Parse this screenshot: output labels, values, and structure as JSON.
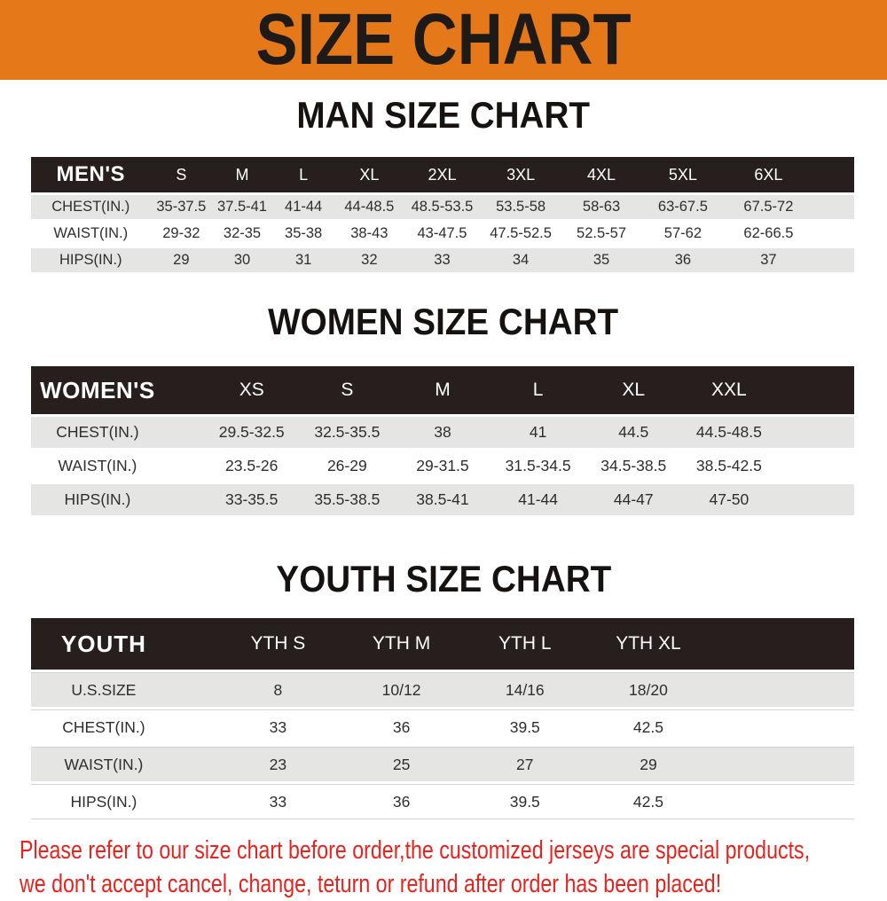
{
  "banner": {
    "title": "SIZE CHART"
  },
  "sections": [
    {
      "id": "men",
      "heading": "MAN SIZE CHART",
      "header_label": "MEN'S",
      "columns": [
        "S",
        "M",
        "L",
        "XL",
        "2XL",
        "3XL",
        "4XL",
        "5XL",
        "6XL"
      ],
      "rows": [
        {
          "label": "CHEST(IN.)",
          "values": [
            "35-37.5",
            "37.5-41",
            "41-44",
            "44-48.5",
            "48.5-53.5",
            "53.5-58",
            "58-63",
            "63-67.5",
            "67.5-72"
          ]
        },
        {
          "label": "WAIST(IN.)",
          "values": [
            "29-32",
            "32-35",
            "35-38",
            "38-43",
            "43-47.5",
            "47.5-52.5",
            "52.5-57",
            "57-62",
            "62-66.5"
          ]
        },
        {
          "label": "HIPS(IN.)",
          "values": [
            "29",
            "30",
            "31",
            "32",
            "33",
            "34",
            "35",
            "36",
            "37"
          ]
        }
      ]
    },
    {
      "id": "women",
      "heading": "WOMEN SIZE CHART",
      "header_label": "WOMEN'S",
      "columns": [
        "XS",
        "S",
        "M",
        "L",
        "XL",
        "XXL"
      ],
      "rows": [
        {
          "label": "CHEST(IN.)",
          "values": [
            "29.5-32.5",
            "32.5-35.5",
            "38",
            "41",
            "44.5",
            "44.5-48.5"
          ]
        },
        {
          "label": "WAIST(IN.)",
          "values": [
            "23.5-26",
            "26-29",
            "29-31.5",
            "31.5-34.5",
            "34.5-38.5",
            "38.5-42.5"
          ]
        },
        {
          "label": "HIPS(IN.)",
          "values": [
            "33-35.5",
            "35.5-38.5",
            "38.5-41",
            "41-44",
            "44-47",
            "47-50"
          ]
        }
      ]
    },
    {
      "id": "youth",
      "heading": "YOUTH SIZE CHART",
      "header_label": "YOUTH",
      "columns": [
        "YTH S",
        "YTH M",
        "YTH L",
        "YTH XL"
      ],
      "rows": [
        {
          "label": "U.S.SIZE",
          "values": [
            "8",
            "10/12",
            "14/16",
            "18/20"
          ]
        },
        {
          "label": "CHEST(IN.)",
          "values": [
            "33",
            "36",
            "39.5",
            "42.5"
          ]
        },
        {
          "label": "WAIST(IN.)",
          "values": [
            "23",
            "25",
            "27",
            "29"
          ]
        },
        {
          "label": "HIPS(IN.)",
          "values": [
            "33",
            "36",
            "39.5",
            "42.5"
          ]
        }
      ]
    }
  ],
  "footer": {
    "line1": "Please refer to our size chart before order,the customized jerseys are special products,",
    "line2": "we don't accept cancel, change, teturn or refund after order has been placed!"
  },
  "colors": {
    "banner_orange": "#E5791A",
    "table_header_black": "#261F1E",
    "row_gray": "#E5E5E3",
    "footer_red": "#E5231F"
  }
}
